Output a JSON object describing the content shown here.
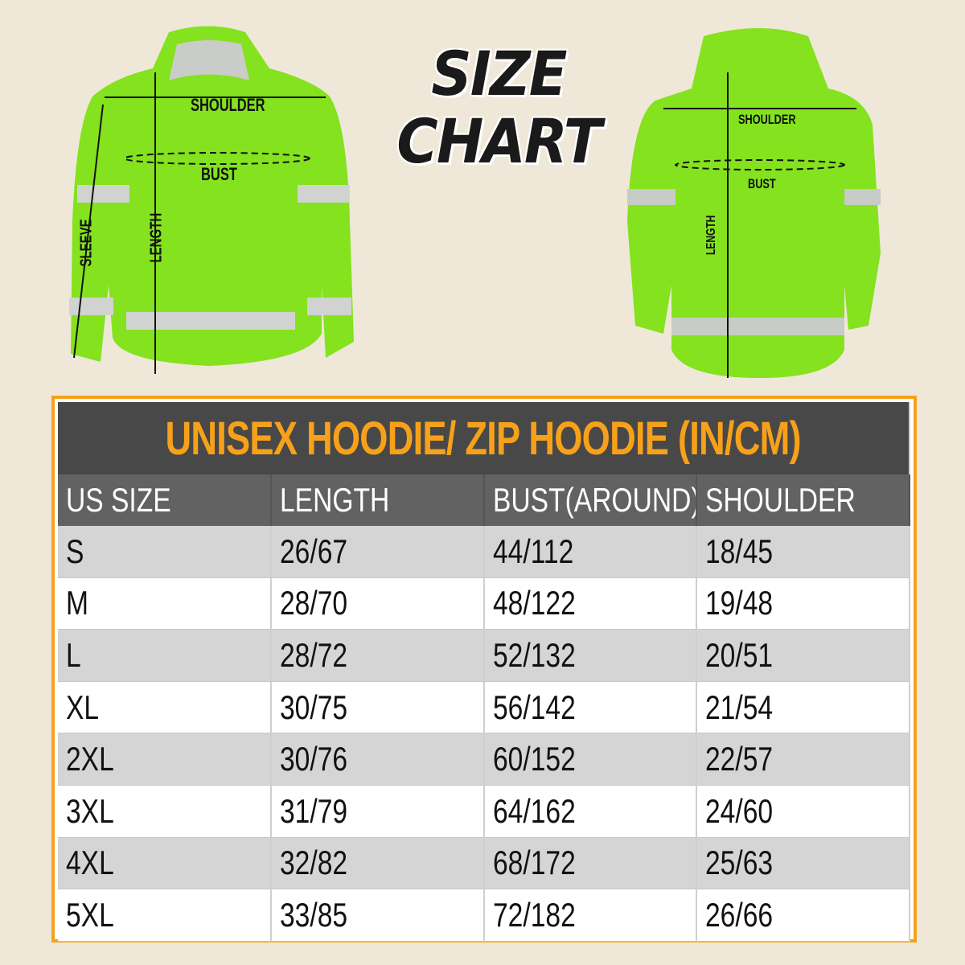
{
  "heading": {
    "line1": "SIZE",
    "line2": "CHART"
  },
  "front_labels": {
    "shoulder": "SHOULDER",
    "bust": "BUST",
    "length": "LENGTH",
    "sleeve": "SLEEVE"
  },
  "back_labels": {
    "shoulder": "SHOULDER",
    "bust": "BUST",
    "length": "LENGTH"
  },
  "table": {
    "title": "UNISEX HOODIE/ ZIP HOODIE (IN/CM)",
    "columns": [
      "US SIZE",
      "LENGTH",
      "BUST(AROUND)",
      "SHOULDER"
    ],
    "rows": [
      [
        "S",
        "26/67",
        "44/112",
        "18/45"
      ],
      [
        "M",
        "28/70",
        "48/122",
        "19/48"
      ],
      [
        "L",
        "28/72",
        "52/132",
        "20/51"
      ],
      [
        "XL",
        "30/75",
        "56/142",
        "21/54"
      ],
      [
        "2XL",
        "30/76",
        "60/152",
        "22/57"
      ],
      [
        "3XL",
        "31/79",
        "64/162",
        "24/60"
      ],
      [
        "4XL",
        "32/82",
        "68/172",
        "25/63"
      ],
      [
        "5XL",
        "33/85",
        "72/182",
        "26/66"
      ]
    ]
  },
  "colors": {
    "hoodie": "#84e21e",
    "accent": "#f4a11c",
    "title_bar": "#484848",
    "header_bar": "#626262"
  }
}
